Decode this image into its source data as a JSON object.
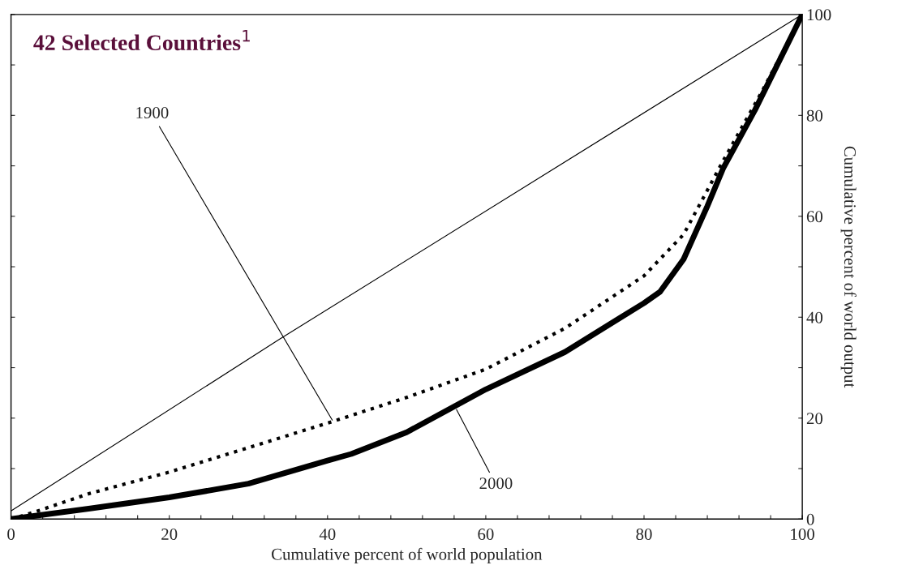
{
  "chart_data": {
    "type": "line",
    "title": "42 Selected Countries$^{1}$",
    "xlabel": "Cumulative percent of world population",
    "ylabel": "Cumulative percent of world output",
    "xlim": [
      0,
      100
    ],
    "ylim": [
      0,
      100
    ],
    "xticks": [
      0,
      {
        "value": 4,
        "label": null
      },
      {
        "value": 8,
        "label": null
      },
      {
        "value": 12,
        "label": null
      },
      {
        "value": 16,
        "label": null
      },
      20,
      {
        "value": 24,
        "label": null
      },
      {
        "value": 28,
        "label": null
      },
      {
        "value": 32,
        "label": null
      },
      {
        "value": 36,
        "label": null
      },
      40,
      {
        "value": 44,
        "label": null
      },
      {
        "value": 48,
        "label": null
      },
      {
        "value": 52,
        "label": null
      },
      {
        "value": 56,
        "label": null
      },
      60,
      {
        "value": 64,
        "label": null
      },
      {
        "value": 68,
        "label": null
      },
      {
        "value": 72,
        "label": null
      },
      {
        "value": 76,
        "label": null
      },
      80,
      {
        "value": 84,
        "label": null
      },
      {
        "value": 88,
        "label": null
      },
      {
        "value": 92,
        "label": null
      },
      {
        "value": 96,
        "label": null
      },
      100
    ],
    "yticks": [
      0,
      {
        "value": 10,
        "label": null
      },
      20,
      {
        "value": 30,
        "label": null
      },
      40,
      {
        "value": 50,
        "label": null
      },
      60,
      {
        "value": 70,
        "label": null
      },
      80,
      {
        "value": 90,
        "label": null
      },
      100
    ],
    "grid": false,
    "legend": false,
    "series": [
      {
        "color": "#000000",
        "line_style": "solid",
        "x": [
          0,
          34,
          100
        ],
        "values": [
          1.6,
          35.7,
          100
        ]
      },
      {
        "color": "#000000",
        "line_style": "dotted",
        "x": [
          0,
          2.8,
          10,
          20,
          40,
          50,
          60,
          70,
          80,
          85,
          90,
          95,
          100
        ],
        "values": [
          0,
          1.3,
          5.1,
          9.3,
          19.0,
          24.1,
          29.7,
          37.8,
          48.2,
          56.4,
          71,
          85,
          100
        ]
      },
      {
        "color": "#000000",
        "line_style": "solid",
        "x": [
          0,
          10,
          20,
          30,
          40,
          43,
          50,
          60,
          70,
          80,
          82,
          85,
          88,
          90,
          94,
          100
        ],
        "values": [
          0,
          2.1,
          4.3,
          7.0,
          11.6,
          12.9,
          17.2,
          25.7,
          33.1,
          42.8,
          45.0,
          51.5,
          62,
          69.5,
          81,
          100
        ]
      }
    ],
    "annotations": [
      {
        "text": "1900",
        "x": 40.6,
        "y": 19.6
      },
      {
        "text": "2000",
        "x": 56.3,
        "y": 21.7
      }
    ]
  }
}
